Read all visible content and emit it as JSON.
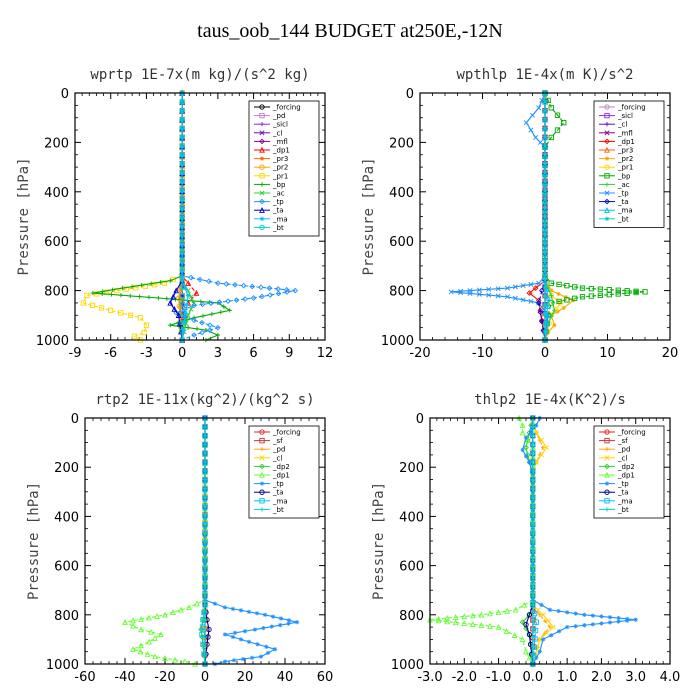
{
  "page": {
    "title": "taus_oob_144  BUDGET at250E,-12N"
  },
  "chart_data": [
    {
      "type": "line",
      "title": "wprtp  1E-7x(m kg)/(s^2 kg)",
      "ylabel": "Pressure [hPa]",
      "xlim": [
        -9,
        12
      ],
      "ylim": [
        1000,
        0
      ],
      "xticks": [
        -9,
        -6,
        -3,
        0,
        3,
        6,
        9,
        12
      ],
      "xtick_labels": [
        "-9",
        "-6",
        "-3",
        "0",
        "3",
        "6",
        "9",
        "12"
      ],
      "yticks": [
        0,
        200,
        400,
        600,
        800,
        1000
      ],
      "ytick_labels": [
        "0",
        "200",
        "400",
        "600",
        "800",
        "1000"
      ],
      "legend": "top-right",
      "series": [
        {
          "name": "_forcing",
          "color": "#000000",
          "x": [
            0,
            0,
            0,
            0,
            0
          ],
          "y": [
            0,
            250,
            500,
            750,
            1000
          ]
        },
        {
          "name": "_pd",
          "color": "#c080c0",
          "x": [
            0,
            0,
            0
          ],
          "y": [
            0,
            500,
            1000
          ]
        },
        {
          "name": "_sicl",
          "color": "#8a2be2",
          "x": [
            0,
            0,
            0
          ],
          "y": [
            0,
            500,
            1000
          ]
        },
        {
          "name": "_cl",
          "color": "#6a0dad",
          "x": [
            0,
            0,
            0
          ],
          "y": [
            0,
            500,
            1000
          ]
        },
        {
          "name": "_mfl",
          "color": "#8b008b",
          "x": [
            0,
            0,
            0
          ],
          "y": [
            0,
            500,
            1000
          ]
        },
        {
          "name": "_dp1",
          "color": "#ff0000",
          "x": [
            0,
            0,
            0.5,
            1.2,
            0.5,
            0.2,
            0,
            0
          ],
          "y": [
            0,
            740,
            770,
            810,
            850,
            900,
            950,
            1000
          ]
        },
        {
          "name": "_pr3",
          "color": "#ff6600",
          "x": [
            0,
            0,
            -0.2,
            0
          ],
          "y": [
            0,
            760,
            830,
            1000
          ]
        },
        {
          "name": "_pr2",
          "color": "#ffa500",
          "x": [
            0,
            0,
            -0.3,
            0
          ],
          "y": [
            0,
            760,
            830,
            1000
          ]
        },
        {
          "name": "_pr1",
          "color": "#ffd700",
          "x": [
            0,
            0,
            -1.5,
            -5.5,
            -8,
            -8.3,
            -6,
            -3.5,
            -3,
            -3.2,
            -4,
            -3.5
          ],
          "y": [
            0,
            740,
            770,
            800,
            820,
            850,
            880,
            910,
            940,
            970,
            985,
            1000
          ]
        },
        {
          "name": "_bp",
          "color": "#00aa00",
          "x": [
            0,
            0,
            -1,
            -5,
            -7.5,
            -2,
            3,
            4,
            1,
            -1,
            2,
            3,
            2
          ],
          "y": [
            0,
            740,
            760,
            790,
            810,
            830,
            850,
            880,
            910,
            940,
            960,
            980,
            1000
          ]
        },
        {
          "name": "_ac",
          "color": "#33cc33",
          "x": [
            0,
            0,
            0.5,
            1,
            0.5,
            0
          ],
          "y": [
            0,
            760,
            800,
            850,
            900,
            1000
          ]
        },
        {
          "name": "_tp",
          "color": "#1e90ff",
          "x": [
            0,
            0,
            3,
            9.5,
            6,
            1,
            -0.5,
            1,
            3,
            1,
            0
          ],
          "y": [
            0,
            740,
            770,
            800,
            830,
            860,
            890,
            920,
            950,
            980,
            1000
          ]
        },
        {
          "name": "_ta",
          "color": "#0000cd",
          "x": [
            0,
            0,
            -0.5,
            -1,
            -0.3,
            0
          ],
          "y": [
            0,
            760,
            800,
            850,
            900,
            1000
          ]
        },
        {
          "name": "_ma",
          "color": "#00bfff",
          "x": [
            0,
            0,
            0.5,
            0
          ],
          "y": [
            0,
            760,
            820,
            1000
          ]
        },
        {
          "name": "_bt",
          "color": "#00ced1",
          "x": [
            0,
            0,
            0
          ],
          "y": [
            0,
            500,
            1000
          ]
        }
      ]
    },
    {
      "type": "line",
      "title": "wpthlp  1E-4x(m K)/s^2",
      "ylabel": "Pressure [hPa]",
      "xlim": [
        -20,
        20
      ],
      "ylim": [
        1000,
        0
      ],
      "xticks": [
        -20,
        -10,
        0,
        10,
        20
      ],
      "xtick_labels": [
        "-20",
        "-10",
        "0",
        "10",
        "20"
      ],
      "yticks": [
        0,
        200,
        400,
        600,
        800,
        1000
      ],
      "ytick_labels": [
        "0",
        "200",
        "400",
        "600",
        "800",
        "1000"
      ],
      "legend": "top-right",
      "series": [
        {
          "name": "_forcing",
          "color": "#c080c0",
          "x": [
            0,
            0,
            0
          ],
          "y": [
            0,
            500,
            1000
          ]
        },
        {
          "name": "_sicl",
          "color": "#8a2be2",
          "x": [
            0,
            0,
            0
          ],
          "y": [
            0,
            500,
            1000
          ]
        },
        {
          "name": "_cl",
          "color": "#6a0dad",
          "x": [
            0,
            0,
            0
          ],
          "y": [
            0,
            500,
            1000
          ]
        },
        {
          "name": "_mfl",
          "color": "#8b008b",
          "x": [
            0,
            0,
            0
          ],
          "y": [
            0,
            500,
            1000
          ]
        },
        {
          "name": "_dp1",
          "color": "#ff0000",
          "x": [
            0,
            0,
            -1.5,
            -2.5,
            -1,
            0
          ],
          "y": [
            0,
            760,
            790,
            810,
            840,
            1000
          ]
        },
        {
          "name": "_pr3",
          "color": "#ff6600",
          "x": [
            0,
            0,
            0
          ],
          "y": [
            0,
            500,
            1000
          ]
        },
        {
          "name": "_pr2",
          "color": "#ffa500",
          "x": [
            0,
            0,
            1,
            4.5,
            3,
            1,
            1.5,
            0.5,
            0
          ],
          "y": [
            0,
            760,
            800,
            840,
            870,
            900,
            940,
            970,
            1000
          ]
        },
        {
          "name": "_pr1",
          "color": "#ffd700",
          "x": [
            0,
            0,
            1,
            2.5,
            1,
            0
          ],
          "y": [
            0,
            760,
            820,
            850,
            900,
            1000
          ]
        },
        {
          "name": "_bp",
          "color": "#00aa00",
          "x": [
            0,
            1,
            3,
            1,
            0,
            0,
            1,
            6,
            16,
            6,
            1,
            0.5,
            0
          ],
          "y": [
            0,
            60,
            120,
            180,
            220,
            740,
            770,
            790,
            805,
            825,
            850,
            900,
            1000
          ]
        },
        {
          "name": "_ac",
          "color": "#33cc33",
          "x": [
            0,
            0,
            1,
            1.5,
            0.5,
            0
          ],
          "y": [
            0,
            760,
            820,
            880,
            930,
            1000
          ]
        },
        {
          "name": "_tp",
          "color": "#1e90ff",
          "x": [
            0,
            -1,
            -3,
            -1.5,
            0,
            0,
            -1,
            -6,
            -15,
            -6,
            -1,
            0.5,
            0
          ],
          "y": [
            0,
            60,
            120,
            180,
            220,
            740,
            770,
            790,
            805,
            825,
            850,
            900,
            1000
          ]
        },
        {
          "name": "_ta",
          "color": "#0000cd",
          "x": [
            0,
            0,
            -0.5,
            -1,
            0
          ],
          "y": [
            0,
            760,
            800,
            850,
            1000
          ]
        },
        {
          "name": "_ma",
          "color": "#00bfff",
          "x": [
            0,
            0,
            0.5,
            0
          ],
          "y": [
            0,
            760,
            830,
            1000
          ]
        },
        {
          "name": "_bt",
          "color": "#00ced1",
          "x": [
            0,
            0,
            0
          ],
          "y": [
            0,
            500,
            1000
          ]
        }
      ]
    },
    {
      "type": "line",
      "title": "rtp2  1E-11x(kg^2)/(kg^2 s)",
      "ylabel": "Pressure [hPa]",
      "xlim": [
        -60,
        60
      ],
      "ylim": [
        1000,
        0
      ],
      "xticks": [
        -60,
        -40,
        -20,
        0,
        20,
        40,
        60
      ],
      "xtick_labels": [
        "-60",
        "-40",
        "-20",
        "0",
        "20",
        "40",
        "60"
      ],
      "yticks": [
        0,
        200,
        400,
        600,
        800,
        1000
      ],
      "ytick_labels": [
        "0",
        "200",
        "400",
        "600",
        "800",
        "1000"
      ],
      "legend": "top-right",
      "series": [
        {
          "name": "_forcing",
          "color": "#e02020",
          "x": [
            0,
            0,
            0,
            0,
            0
          ],
          "y": [
            0,
            250,
            500,
            750,
            1000
          ]
        },
        {
          "name": "_sf",
          "color": "#cc3333",
          "x": [
            0,
            0,
            0
          ],
          "y": [
            0,
            500,
            1000
          ]
        },
        {
          "name": "_pd",
          "color": "#ffa500",
          "x": [
            0,
            0,
            0
          ],
          "y": [
            0,
            500,
            1000
          ]
        },
        {
          "name": "_cl",
          "color": "#ffd700",
          "x": [
            0,
            0,
            0
          ],
          "y": [
            0,
            500,
            1000
          ]
        },
        {
          "name": "_dp2",
          "color": "#33cc33",
          "x": [
            0,
            0,
            -1,
            -2,
            -1,
            0
          ],
          "y": [
            0,
            760,
            820,
            860,
            920,
            1000
          ]
        },
        {
          "name": "_dp1",
          "color": "#66ff33",
          "x": [
            0,
            0,
            -8,
            -20,
            -40,
            -32,
            -22,
            -28,
            -36,
            -25,
            -10,
            -5
          ],
          "y": [
            0,
            740,
            770,
            800,
            830,
            860,
            880,
            910,
            940,
            970,
            990,
            1000
          ]
        },
        {
          "name": "_tp",
          "color": "#1e90ff",
          "x": [
            0,
            0,
            10,
            30,
            46,
            25,
            10,
            22,
            35,
            28,
            10,
            5
          ],
          "y": [
            0,
            740,
            770,
            800,
            830,
            860,
            880,
            910,
            940,
            970,
            990,
            1000
          ]
        },
        {
          "name": "_ta",
          "color": "#000080",
          "x": [
            0,
            0,
            1,
            2,
            1,
            0
          ],
          "y": [
            0,
            760,
            820,
            860,
            920,
            1000
          ]
        },
        {
          "name": "_ma",
          "color": "#00bfff",
          "x": [
            0,
            0,
            -1,
            -1.5,
            0
          ],
          "y": [
            0,
            760,
            820,
            880,
            1000
          ]
        },
        {
          "name": "_bt",
          "color": "#00ced1",
          "x": [
            0,
            0,
            0
          ],
          "y": [
            0,
            500,
            1000
          ]
        }
      ]
    },
    {
      "type": "line",
      "title": "thlp2  1E-4x(K^2)/s",
      "ylabel": "Pressure [hPa]",
      "xlim": [
        -3.0,
        4.0
      ],
      "ylim": [
        1000,
        0
      ],
      "xticks": [
        -3,
        -2,
        -1,
        0,
        1,
        2,
        3,
        4
      ],
      "xtick_labels": [
        "-3.0",
        "-2.0",
        "-1.0",
        "0.0",
        "1.0",
        "2.0",
        "3.0",
        "4.0"
      ],
      "yticks": [
        0,
        200,
        400,
        600,
        800,
        1000
      ],
      "ytick_labels": [
        "0",
        "200",
        "400",
        "600",
        "800",
        "1000"
      ],
      "legend": "top-right",
      "series": [
        {
          "name": "_forcing",
          "color": "#e02020",
          "x": [
            0,
            0,
            0,
            0,
            0
          ],
          "y": [
            0,
            250,
            500,
            750,
            1000
          ]
        },
        {
          "name": "_sf",
          "color": "#cc3333",
          "x": [
            0,
            0,
            0
          ],
          "y": [
            0,
            500,
            1000
          ]
        },
        {
          "name": "_pd",
          "color": "#ffa500",
          "x": [
            0,
            0.1,
            0.3,
            0.1,
            0,
            0,
            0.2,
            0.5,
            0.2,
            0
          ],
          "y": [
            0,
            60,
            120,
            180,
            220,
            760,
            800,
            850,
            900,
            1000
          ]
        },
        {
          "name": "_cl",
          "color": "#ffd700",
          "x": [
            0,
            0.1,
            0.4,
            0.1,
            0,
            0,
            0.3,
            0.6,
            0.2,
            0
          ],
          "y": [
            0,
            60,
            120,
            180,
            220,
            760,
            800,
            850,
            900,
            1000
          ]
        },
        {
          "name": "_dp2",
          "color": "#33cc33",
          "x": [
            0,
            -0.1,
            -0.2,
            -0.1,
            0,
            0,
            -0.1,
            -0.3,
            -0.1,
            0
          ],
          "y": [
            0,
            60,
            120,
            180,
            220,
            760,
            800,
            830,
            880,
            1000
          ]
        },
        {
          "name": "_dp1",
          "color": "#66ff33",
          "x": [
            -0.4,
            -0.3,
            -0.3,
            0,
            0,
            -0.5,
            -1.5,
            -3.0,
            -1.0,
            -0.3,
            -0.2,
            0
          ],
          "y": [
            0,
            30,
            60,
            120,
            740,
            780,
            800,
            820,
            850,
            900,
            950,
            1000
          ]
        },
        {
          "name": "_tp",
          "color": "#1e90ff",
          "x": [
            0.2,
            0.1,
            -0.2,
            -0.3,
            -0.1,
            0,
            0,
            0.5,
            1.5,
            3.0,
            1.0,
            0.3,
            0.2,
            0
          ],
          "y": [
            0,
            30,
            80,
            130,
            180,
            230,
            740,
            780,
            800,
            820,
            850,
            900,
            950,
            1000
          ]
        },
        {
          "name": "_ta",
          "color": "#000080",
          "x": [
            0,
            0,
            -0.1,
            -0.2,
            -0.1,
            0
          ],
          "y": [
            0,
            760,
            800,
            840,
            880,
            1000
          ]
        },
        {
          "name": "_ma",
          "color": "#00bfff",
          "x": [
            0,
            0,
            0.1,
            0
          ],
          "y": [
            0,
            760,
            830,
            1000
          ]
        },
        {
          "name": "_bt",
          "color": "#00ced1",
          "x": [
            0,
            0,
            0
          ],
          "y": [
            0,
            500,
            1000
          ]
        }
      ]
    }
  ]
}
